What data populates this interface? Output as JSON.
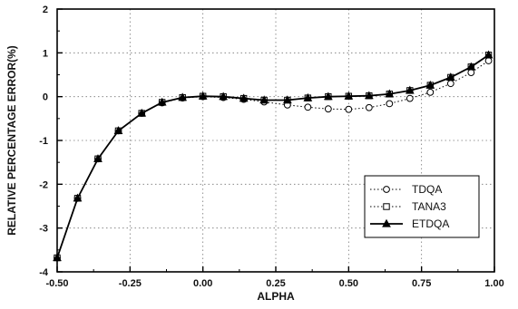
{
  "chart_data": {
    "type": "line",
    "xlabel": "ALPHA",
    "ylabel": "RELATIVE PERCENTAGE ERROR(%)",
    "xlim": [
      -0.5,
      1.0
    ],
    "ylim": [
      -4,
      2
    ],
    "x_ticks": [
      "-0.50",
      "-0.25",
      "0.00",
      "0.25",
      "0.50",
      "0.75",
      "1.00"
    ],
    "y_ticks": [
      "2",
      "1",
      "0",
      "-1",
      "-2",
      "-3",
      "-4"
    ],
    "grid": true,
    "legend_position": "bottom-right",
    "x": [
      -0.5,
      -0.43,
      -0.36,
      -0.29,
      -0.21,
      -0.14,
      -0.07,
      0.0,
      0.07,
      0.14,
      0.21,
      0.29,
      0.36,
      0.43,
      0.5,
      0.57,
      0.64,
      0.71,
      0.78,
      0.85,
      0.92,
      0.98
    ],
    "series": [
      {
        "name": "TDQA",
        "marker": "circle-open",
        "line": "dotted",
        "values": [
          -3.68,
          -2.32,
          -1.42,
          -0.78,
          -0.38,
          -0.14,
          -0.03,
          0.0,
          -0.02,
          -0.06,
          -0.12,
          -0.19,
          -0.24,
          -0.28,
          -0.29,
          -0.25,
          -0.16,
          -0.04,
          0.1,
          0.3,
          0.55,
          0.82
        ]
      },
      {
        "name": "TANA3",
        "marker": "square-open",
        "line": "dotted",
        "values": [
          -3.68,
          -2.32,
          -1.42,
          -0.78,
          -0.38,
          -0.13,
          -0.02,
          0.01,
          0.0,
          -0.04,
          -0.08,
          -0.08,
          -0.03,
          0.0,
          0.01,
          0.02,
          0.06,
          0.14,
          0.26,
          0.44,
          0.68,
          0.95
        ]
      },
      {
        "name": "ETDQA",
        "marker": "triangle-filled",
        "line": "solid",
        "values": [
          -3.68,
          -2.32,
          -1.42,
          -0.78,
          -0.38,
          -0.13,
          -0.02,
          0.01,
          0.0,
          -0.04,
          -0.08,
          -0.08,
          -0.03,
          0.0,
          0.01,
          0.02,
          0.06,
          0.14,
          0.26,
          0.44,
          0.68,
          0.95
        ]
      }
    ]
  }
}
